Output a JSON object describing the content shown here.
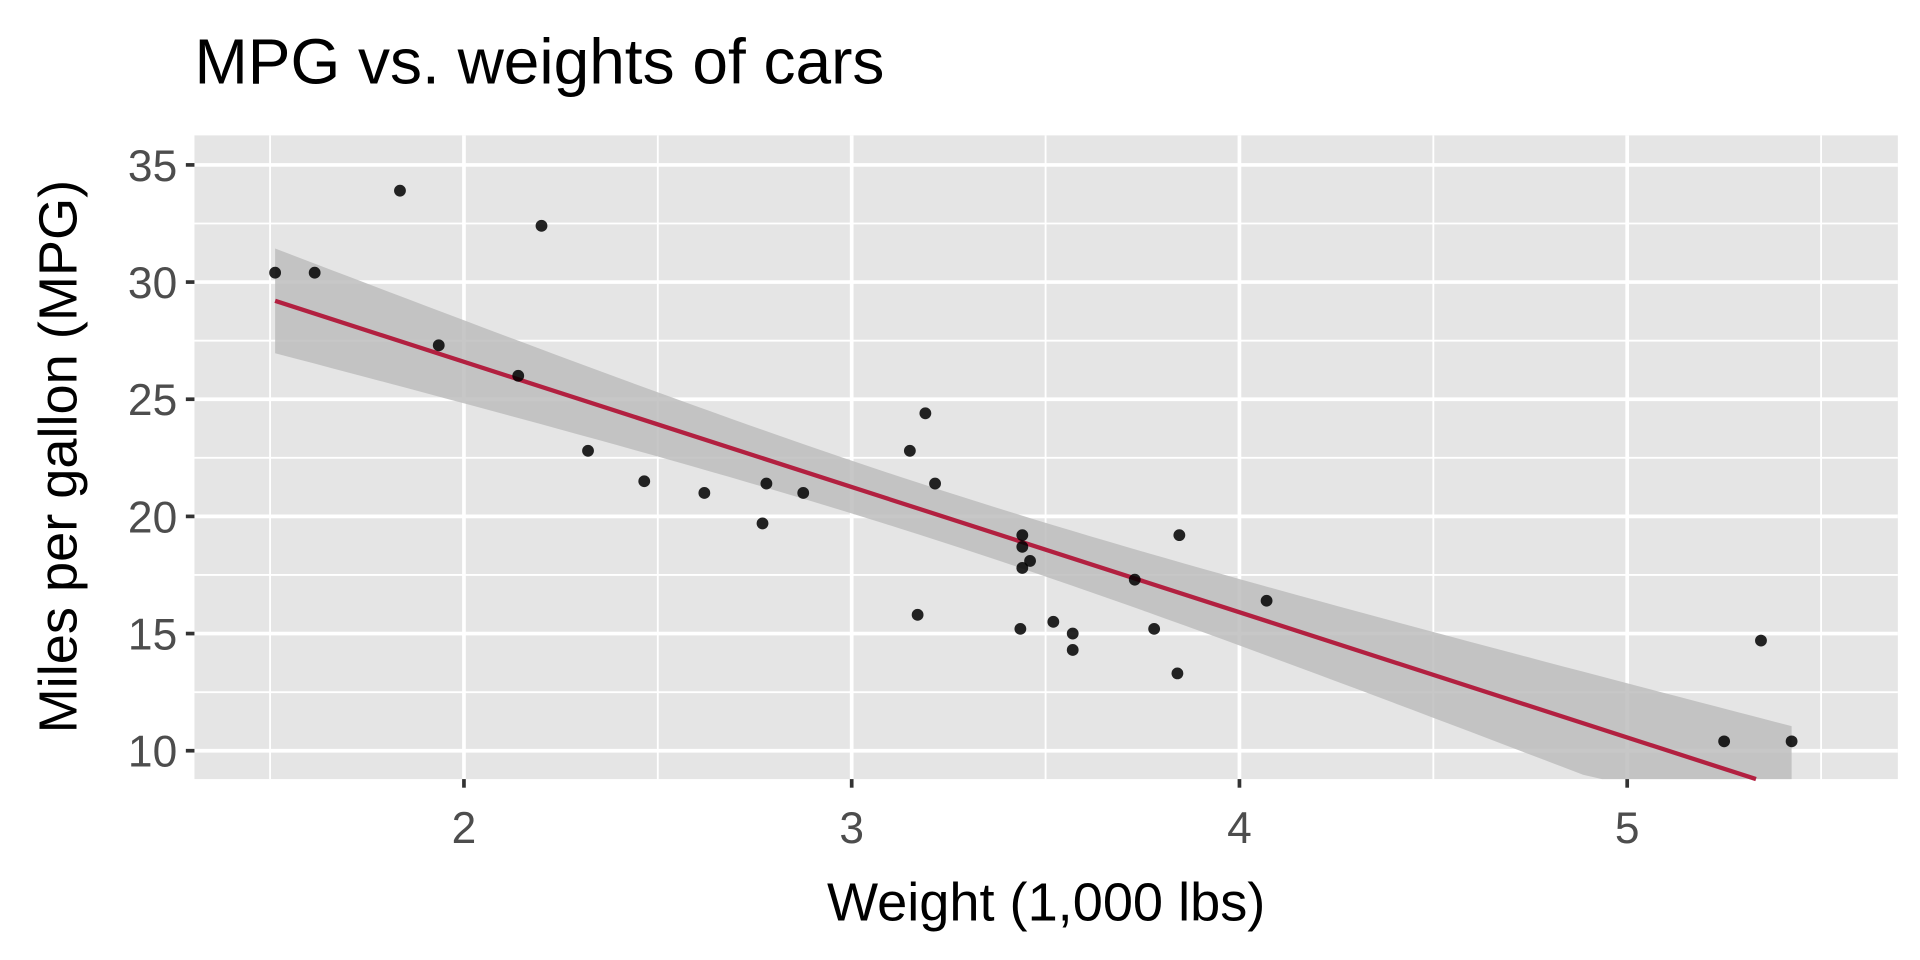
{
  "chart_data": {
    "type": "scatter",
    "title": "MPG vs. weights of cars",
    "xlabel": "Weight (1,000 lbs)",
    "ylabel": "Miles per gallon (MPG)",
    "xlim": [
      1.305,
      5.698
    ],
    "ylim": [
      8.79,
      36.26
    ],
    "x_ticks": [
      2,
      3,
      4,
      5
    ],
    "x_tick_labels": [
      "2",
      "3",
      "4",
      "5"
    ],
    "x_minor": [
      1.5,
      2.5,
      3.5,
      4.5,
      5.5
    ],
    "y_ticks": [
      10,
      15,
      20,
      25,
      30,
      35
    ],
    "y_tick_labels": [
      "10",
      "15",
      "20",
      "25",
      "30",
      "35"
    ],
    "y_minor": [
      12.5,
      17.5,
      22.5,
      27.5,
      32.5
    ],
    "grid": true,
    "colors": {
      "panel": "#e5e5e5",
      "grid": "#ffffff",
      "points": "#000000",
      "fit": "#b22040",
      "band": "#bdbdbd"
    },
    "points": [
      [
        2.62,
        21.0
      ],
      [
        2.875,
        21.0
      ],
      [
        2.32,
        22.8
      ],
      [
        3.215,
        21.4
      ],
      [
        3.44,
        18.7
      ],
      [
        3.46,
        18.1
      ],
      [
        3.57,
        14.3
      ],
      [
        3.19,
        24.4
      ],
      [
        3.15,
        22.8
      ],
      [
        3.44,
        19.2
      ],
      [
        3.44,
        17.8
      ],
      [
        4.07,
        16.4
      ],
      [
        3.73,
        17.3
      ],
      [
        3.78,
        15.2
      ],
      [
        5.25,
        10.4
      ],
      [
        5.424,
        10.4
      ],
      [
        5.345,
        14.7
      ],
      [
        2.2,
        32.4
      ],
      [
        1.615,
        30.4
      ],
      [
        1.835,
        33.9
      ],
      [
        2.465,
        21.5
      ],
      [
        3.52,
        15.5
      ],
      [
        3.435,
        15.2
      ],
      [
        3.84,
        13.3
      ],
      [
        3.845,
        19.2
      ],
      [
        1.935,
        27.3
      ],
      [
        2.14,
        26.0
      ],
      [
        1.513,
        30.4
      ],
      [
        3.17,
        15.8
      ],
      [
        2.77,
        19.7
      ],
      [
        3.57,
        15.0
      ],
      [
        2.78,
        21.4
      ]
    ],
    "fit": {
      "method": "lm",
      "intercept": 37.285,
      "slope": -5.344,
      "x_range": [
        1.513,
        5.424
      ],
      "residual_se": 3.046,
      "n": 32,
      "x_mean": 3.21725,
      "sxx": 29.679,
      "t_crit": 2.042
    }
  }
}
